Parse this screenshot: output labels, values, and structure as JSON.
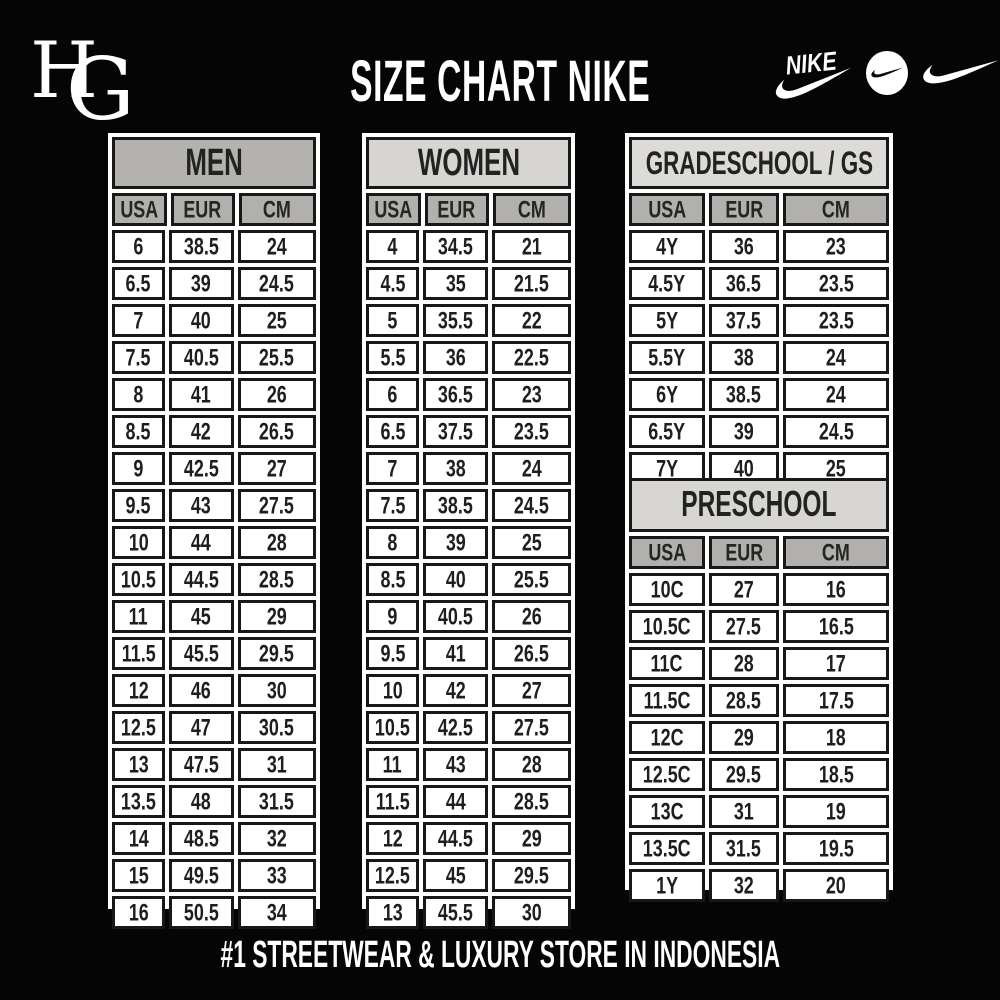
{
  "page": {
    "title": "SIZE CHART NIKE",
    "footer": "#1 STREETWEAR & LUXURY STORE IN INDONESIA"
  },
  "brand": {
    "monogram_h": "H",
    "monogram_g": "G",
    "nike_wordmark": "NIKE"
  },
  "colors": {
    "background": "#050505",
    "panel": "#ffffff",
    "men_title_band": "#b4b2ae",
    "women_title_band": "#d7d5d1",
    "gradeschool_title_band": "#dddbd7",
    "preschool_title_band": "#d8d6d3",
    "column_header_band": "#b2b0ac",
    "cell_border": "#181818",
    "cell_text": "#1e1e1e",
    "header_text": "#ffffff"
  },
  "tables": [
    {
      "title": "MEN",
      "columns": [
        "USA",
        "EUR",
        "CM"
      ],
      "rows": [
        [
          "6",
          "38.5",
          "24"
        ],
        [
          "6.5",
          "39",
          "24.5"
        ],
        [
          "7",
          "40",
          "25"
        ],
        [
          "7.5",
          "40.5",
          "25.5"
        ],
        [
          "8",
          "41",
          "26"
        ],
        [
          "8.5",
          "42",
          "26.5"
        ],
        [
          "9",
          "42.5",
          "27"
        ],
        [
          "9.5",
          "43",
          "27.5"
        ],
        [
          "10",
          "44",
          "28"
        ],
        [
          "10.5",
          "44.5",
          "28.5"
        ],
        [
          "11",
          "45",
          "29"
        ],
        [
          "11.5",
          "45.5",
          "29.5"
        ],
        [
          "12",
          "46",
          "30"
        ],
        [
          "12.5",
          "47",
          "30.5"
        ],
        [
          "13",
          "47.5",
          "31"
        ],
        [
          "13.5",
          "48",
          "31.5"
        ],
        [
          "14",
          "48.5",
          "32"
        ],
        [
          "15",
          "49.5",
          "33"
        ],
        [
          "16",
          "50.5",
          "34"
        ]
      ]
    },
    {
      "title": "WOMEN",
      "columns": [
        "USA",
        "EUR",
        "CM"
      ],
      "rows": [
        [
          "4",
          "34.5",
          "21"
        ],
        [
          "4.5",
          "35",
          "21.5"
        ],
        [
          "5",
          "35.5",
          "22"
        ],
        [
          "5.5",
          "36",
          "22.5"
        ],
        [
          "6",
          "36.5",
          "23"
        ],
        [
          "6.5",
          "37.5",
          "23.5"
        ],
        [
          "7",
          "38",
          "24"
        ],
        [
          "7.5",
          "38.5",
          "24.5"
        ],
        [
          "8",
          "39",
          "25"
        ],
        [
          "8.5",
          "40",
          "25.5"
        ],
        [
          "9",
          "40.5",
          "26"
        ],
        [
          "9.5",
          "41",
          "26.5"
        ],
        [
          "10",
          "42",
          "27"
        ],
        [
          "10.5",
          "42.5",
          "27.5"
        ],
        [
          "11",
          "43",
          "28"
        ],
        [
          "11.5",
          "44",
          "28.5"
        ],
        [
          "12",
          "44.5",
          "29"
        ],
        [
          "12.5",
          "45",
          "29.5"
        ],
        [
          "13",
          "45.5",
          "30"
        ]
      ]
    },
    {
      "title": "GRADESCHOOL / GS",
      "columns": [
        "USA",
        "EUR",
        "CM"
      ],
      "rows": [
        [
          "4Y",
          "36",
          "23"
        ],
        [
          "4.5Y",
          "36.5",
          "23.5"
        ],
        [
          "5Y",
          "37.5",
          "23.5"
        ],
        [
          "5.5Y",
          "38",
          "24"
        ],
        [
          "6Y",
          "38.5",
          "24"
        ],
        [
          "6.5Y",
          "39",
          "24.5"
        ],
        [
          "7Y",
          "40",
          "25"
        ]
      ]
    },
    {
      "title": "PRESCHOOL",
      "columns": [
        "USA",
        "EUR",
        "CM"
      ],
      "rows": [
        [
          "10C",
          "27",
          "16"
        ],
        [
          "10.5C",
          "27.5",
          "16.5"
        ],
        [
          "11C",
          "28",
          "17"
        ],
        [
          "11.5C",
          "28.5",
          "17.5"
        ],
        [
          "12C",
          "29",
          "18"
        ],
        [
          "12.5C",
          "29.5",
          "18.5"
        ],
        [
          "13C",
          "31",
          "19"
        ],
        [
          "13.5C",
          "31.5",
          "19.5"
        ],
        [
          "1Y",
          "32",
          "20"
        ]
      ]
    }
  ]
}
